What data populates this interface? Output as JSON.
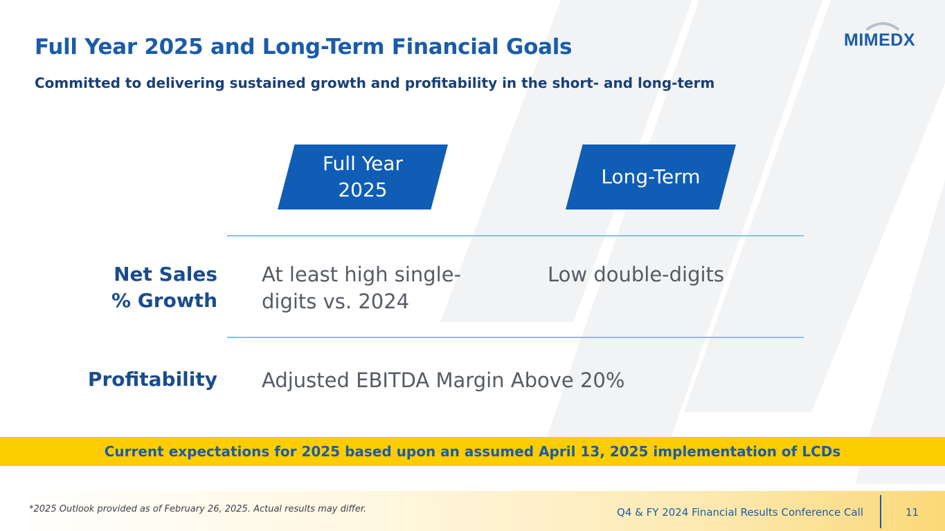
{
  "slide": {
    "title": "Full Year 2025 and Long-Term Financial Goals",
    "subtitle": "Committed to delivering sustained growth and profitability in the short- and long-term",
    "logo_text": "MIMEDX"
  },
  "table": {
    "columns": [
      "Full Year 2025",
      "Long-Term"
    ],
    "column_lines": [
      [
        "Full Year",
        "2025"
      ],
      [
        "Long-Term"
      ]
    ],
    "rows": [
      {
        "label_lines": [
          "Net Sales",
          "% Growth"
        ],
        "full_year_lines": [
          "At least high single-",
          "digits vs. 2024"
        ],
        "long_term": "Low double-digits"
      },
      {
        "label_lines": [
          "Profitability"
        ],
        "combined": "Adjusted EBITDA Margin Above 20%"
      }
    ]
  },
  "banner": {
    "text": "Current expectations for 2025 based upon an assumed April 13, 2025 implementation of LCDs"
  },
  "footer": {
    "footnote": "*2025 Outlook provided as of February 26, 2025. Actual results may differ.",
    "event": "Q4 & FY 2024 Financial Results Conference Call",
    "page_number": "11"
  },
  "colors": {
    "brand_blue": "#1a5ca8",
    "header_fill": "#0f5db5",
    "rule": "#7cc5ef",
    "banner": "#fdcd00"
  }
}
